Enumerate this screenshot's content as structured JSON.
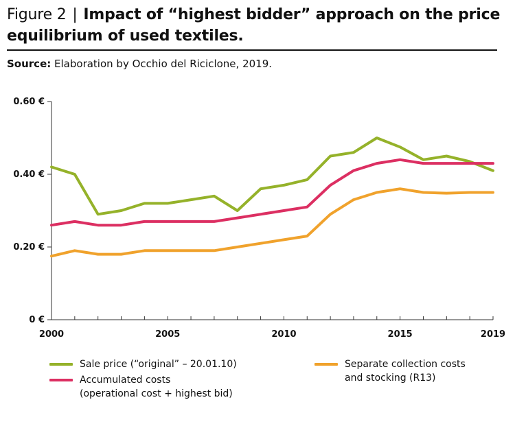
{
  "figure": {
    "label": "Figure 2",
    "separator": "|",
    "title": "Impact of “highest bidder” approach on the price equilibrium of used textiles.",
    "source_label": "Source:",
    "source_text": "Elaboration by Occhio del Riciclone, 2019."
  },
  "chart_data": {
    "type": "line",
    "title": "Impact of “highest bidder” approach on the price equilibrium of used textiles.",
    "xlabel": "",
    "ylabel": "",
    "x": [
      2000,
      2001,
      2002,
      2003,
      2004,
      2005,
      2006,
      2007,
      2008,
      2009,
      2010,
      2011,
      2012,
      2013,
      2014,
      2015,
      2016,
      2017,
      2018,
      2019
    ],
    "x_tick_labels": [
      "2000",
      "2005",
      "2010",
      "2015",
      "2019"
    ],
    "x_ticks": [
      2000,
      2005,
      2010,
      2015,
      2019
    ],
    "xlim": [
      2000,
      2019
    ],
    "y_tick_labels": [
      "0 €",
      "0.20 €",
      "0.40 €",
      "0.60 €"
    ],
    "y_ticks": [
      0,
      0.2,
      0.4,
      0.6
    ],
    "ylim": [
      0,
      0.6
    ],
    "grid": false,
    "legend_position": "bottom",
    "series": [
      {
        "name": "Sale price (“original” – 20.01.10)",
        "color": "#95b22a",
        "values": [
          0.42,
          0.4,
          0.29,
          0.3,
          0.32,
          0.32,
          0.33,
          0.34,
          0.3,
          0.36,
          0.37,
          0.385,
          0.45,
          0.46,
          0.5,
          0.475,
          0.44,
          0.45,
          0.435,
          0.41
        ]
      },
      {
        "name": "Accumulated costs (operational cost + highest bid)",
        "color": "#dc2f62",
        "values": [
          0.26,
          0.27,
          0.26,
          0.26,
          0.27,
          0.27,
          0.27,
          0.27,
          0.28,
          0.29,
          0.3,
          0.31,
          0.37,
          0.41,
          0.43,
          0.44,
          0.43,
          0.43,
          0.43,
          0.43
        ]
      },
      {
        "name": "Separate collection costs and stocking (R13)",
        "color": "#f0a22c",
        "values": [
          0.175,
          0.19,
          0.18,
          0.18,
          0.19,
          0.19,
          0.19,
          0.19,
          0.2,
          0.21,
          0.22,
          0.23,
          0.29,
          0.33,
          0.35,
          0.36,
          0.35,
          0.348,
          0.35,
          0.35
        ]
      }
    ]
  },
  "legend": {
    "sale_price": "Sale price (“original” – 20.01.10)",
    "accumulated_line1": "Accumulated costs",
    "accumulated_line2": "(operational cost + highest bid)",
    "collection_line1": "Separate collection costs",
    "collection_line2": "and stocking (R13)"
  }
}
